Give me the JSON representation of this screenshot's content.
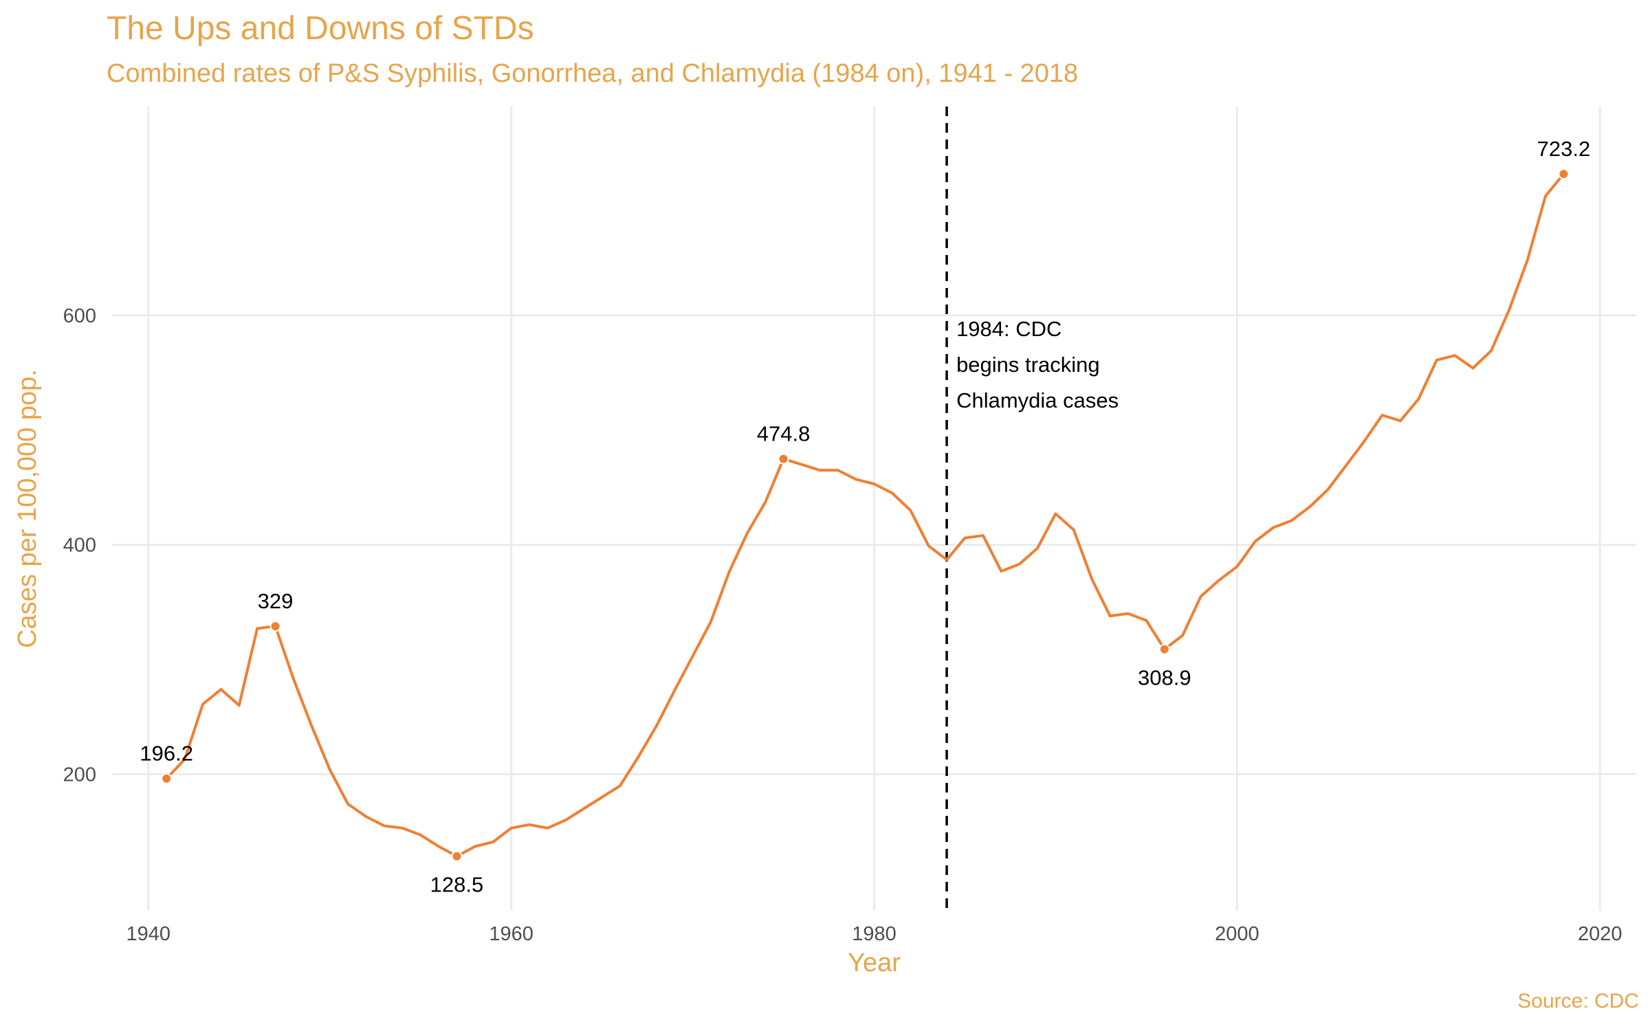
{
  "source": "Source: CDC",
  "colors": {
    "line": "#F07F32",
    "title": "#E8A44A",
    "grid": "#EBEBEB",
    "vline": "#000000"
  },
  "chart_data": {
    "type": "line",
    "title": "The Ups and Downs of STDs",
    "subtitle": "Combined rates of P&S Syphilis, Gonorrhea, and Chlamydia (1984 on), 1941 - 2018",
    "xlabel": "Year",
    "ylabel": "Cases per 100,000 pop.",
    "xlim": [
      1938,
      2022
    ],
    "ylim": [
      81,
      782
    ],
    "x_ticks": [
      1940,
      1960,
      1980,
      2000,
      2020
    ],
    "y_ticks": [
      200,
      400,
      600
    ],
    "grid": true,
    "legend": "none",
    "series": [
      {
        "x": [
          1941,
          1942,
          1943,
          1944,
          1945,
          1946,
          1947,
          1948,
          1949,
          1950,
          1951,
          1952,
          1953,
          1954,
          1955,
          1956,
          1957,
          1958,
          1959,
          1960,
          1961,
          1962,
          1963,
          1964,
          1965,
          1966,
          1967,
          1968,
          1969,
          1970,
          1971,
          1972,
          1973,
          1974,
          1975,
          1976,
          1977,
          1978,
          1979,
          1980,
          1981,
          1982,
          1983,
          1984,
          1985,
          1986,
          1987,
          1988,
          1989,
          1990,
          1991,
          1992,
          1993,
          1994,
          1995,
          1996,
          1997,
          1998,
          1999,
          2000,
          2001,
          2002,
          2003,
          2004,
          2005,
          2006,
          2007,
          2008,
          2009,
          2010,
          2011,
          2012,
          2013,
          2014,
          2015,
          2016,
          2017,
          2018
        ],
        "y": [
          196.2,
          213,
          261,
          274,
          260,
          327,
          329,
          283,
          242,
          204,
          174,
          163,
          155,
          153,
          147,
          137,
          128.5,
          137,
          141,
          153,
          156,
          153,
          160,
          170,
          180,
          190,
          215,
          242,
          273,
          303,
          333,
          376,
          410,
          437,
          474.8,
          470,
          465,
          465,
          457,
          453,
          445,
          430,
          399,
          387,
          406,
          408,
          377,
          383,
          397,
          427,
          413,
          370,
          338,
          340,
          334,
          308.9,
          321,
          355,
          369,
          381,
          403,
          415,
          421,
          433,
          448,
          469,
          490,
          513,
          508,
          527,
          561,
          565,
          554,
          569,
          605,
          648,
          704,
          723.2
        ]
      }
    ],
    "point_labels": [
      {
        "x": 1941,
        "y": 196.2,
        "label": "196.2"
      },
      {
        "x": 1947,
        "y": 329,
        "label": "329"
      },
      {
        "x": 1957,
        "y": 128.5,
        "label": "128.5"
      },
      {
        "x": 1975,
        "y": 474.8,
        "label": "474.8"
      },
      {
        "x": 1996,
        "y": 308.9,
        "label": "308.9"
      },
      {
        "x": 2018,
        "y": 723.2,
        "label": "723.2"
      }
    ],
    "vline": {
      "x": 1984,
      "style": "dashed",
      "label_lines": [
        "1984: CDC",
        "begins tracking",
        "Chlamydia cases"
      ]
    }
  }
}
